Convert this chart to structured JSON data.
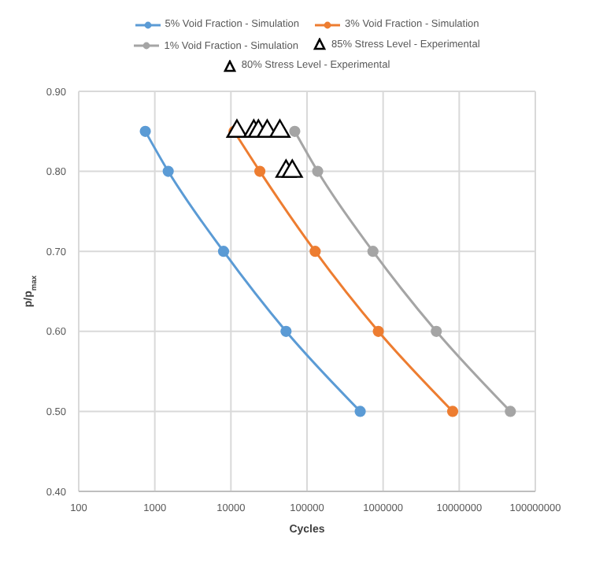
{
  "chart_data": {
    "type": "line",
    "xlabel": "Cycles",
    "ylabel": "p/p$_{max}$",
    "log": "x",
    "xlim": [
      100,
      100000000
    ],
    "xticks": [
      100,
      1000,
      10000,
      100000,
      1000000,
      10000000,
      100000000
    ],
    "ylim": [
      0.4,
      0.9
    ],
    "yticks": [
      {
        "value": 0.4,
        "label": "0.40"
      },
      {
        "value": 0.5,
        "label": "0.50"
      },
      {
        "value": 0.6,
        "label": "0.60"
      },
      {
        "value": 0.7,
        "label": "0.70"
      },
      {
        "value": 0.8,
        "label": "0.80"
      },
      {
        "value": 0.9,
        "label": "0.90"
      }
    ],
    "grid": true,
    "legend": "top",
    "series": [
      {
        "name": "5% Void Fraction - Simulation",
        "marker": "circle",
        "color": "#5b9bd5",
        "x": [
          750,
          1500,
          8000,
          53000,
          500000
        ],
        "values": [
          0.85,
          0.8,
          0.7,
          0.6,
          0.5
        ]
      },
      {
        "name": "3% Void Fraction - Simulation",
        "marker": "circle",
        "color": "#ed7d31",
        "x": [
          11000,
          24000,
          128000,
          865000,
          8200000
        ],
        "values": [
          0.85,
          0.8,
          0.7,
          0.6,
          0.5
        ]
      },
      {
        "name": "1% Void Fraction - Simulation",
        "marker": "circle",
        "color": "#a5a5a5",
        "x": [
          69000,
          138000,
          735000,
          5000000,
          47000000
        ],
        "values": [
          0.85,
          0.8,
          0.7,
          0.6,
          0.5
        ]
      },
      {
        "name": "85% Stress Level - Experimental",
        "type": "scatter",
        "marker": "triangle",
        "color": "#000000",
        "x": [
          12000,
          20000,
          23000,
          30000,
          44000
        ],
        "values": [
          0.85,
          0.85,
          0.85,
          0.85,
          0.85
        ]
      },
      {
        "name": "80% Stress Level - Experimental",
        "type": "scatter",
        "marker": "triangle",
        "color": "#000000",
        "x": [
          53000,
          64000
        ],
        "values": [
          0.8,
          0.8
        ]
      }
    ]
  }
}
